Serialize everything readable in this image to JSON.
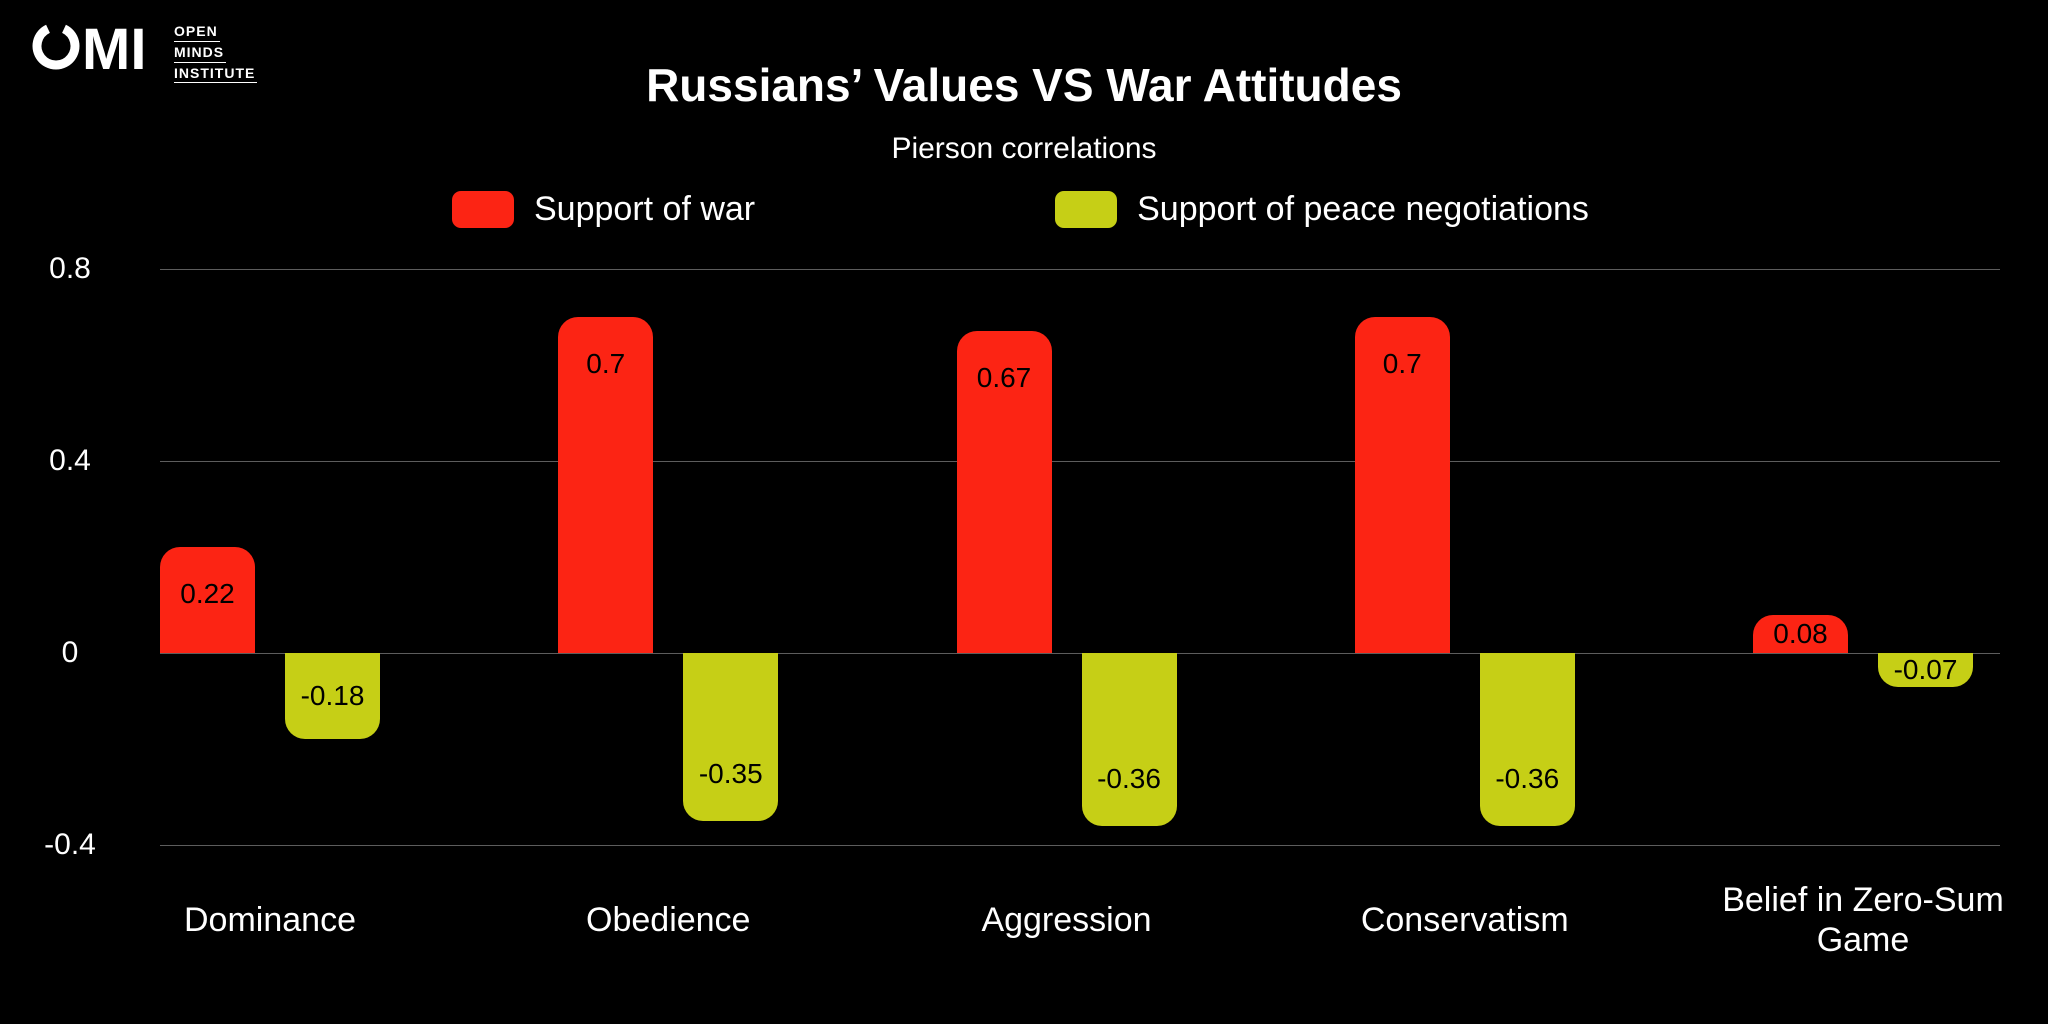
{
  "logo": {
    "letters": "MI",
    "lines": [
      "OPEN",
      "MINDS",
      "INSTITUTE"
    ]
  },
  "chart_data": {
    "type": "bar",
    "title": "Russians’ Values VS War Attitudes",
    "subtitle": "Pierson correlations",
    "categories": [
      "Dominance",
      "Obedience",
      "Aggression",
      "Conservatism",
      "Belief in Zero-Sum Game"
    ],
    "series": [
      {
        "name": "Support of war",
        "color": "#fc2414",
        "values": [
          0.22,
          0.7,
          0.67,
          0.7,
          0.08
        ],
        "labels": [
          "0.22",
          "0.7",
          "0.67",
          "0.7",
          "0.08"
        ]
      },
      {
        "name": "Support of peace negotiations",
        "color": "#c6cf16",
        "values": [
          -0.18,
          -0.35,
          -0.36,
          -0.36,
          -0.07
        ],
        "labels": [
          "-0.18",
          "-0.35",
          "-0.36",
          "-0.36",
          "-0.07"
        ]
      }
    ],
    "ylim": [
      -0.4,
      0.8
    ],
    "yticks": [
      {
        "value": 0.8,
        "label": "0.8"
      },
      {
        "value": 0.4,
        "label": "0.4"
      },
      {
        "value": 0,
        "label": "0"
      },
      {
        "value": -0.4,
        "label": "-0.4"
      }
    ],
    "grid": "horizontal",
    "legend_position": "top",
    "background": "#000000",
    "text_color": "#ffffff"
  }
}
